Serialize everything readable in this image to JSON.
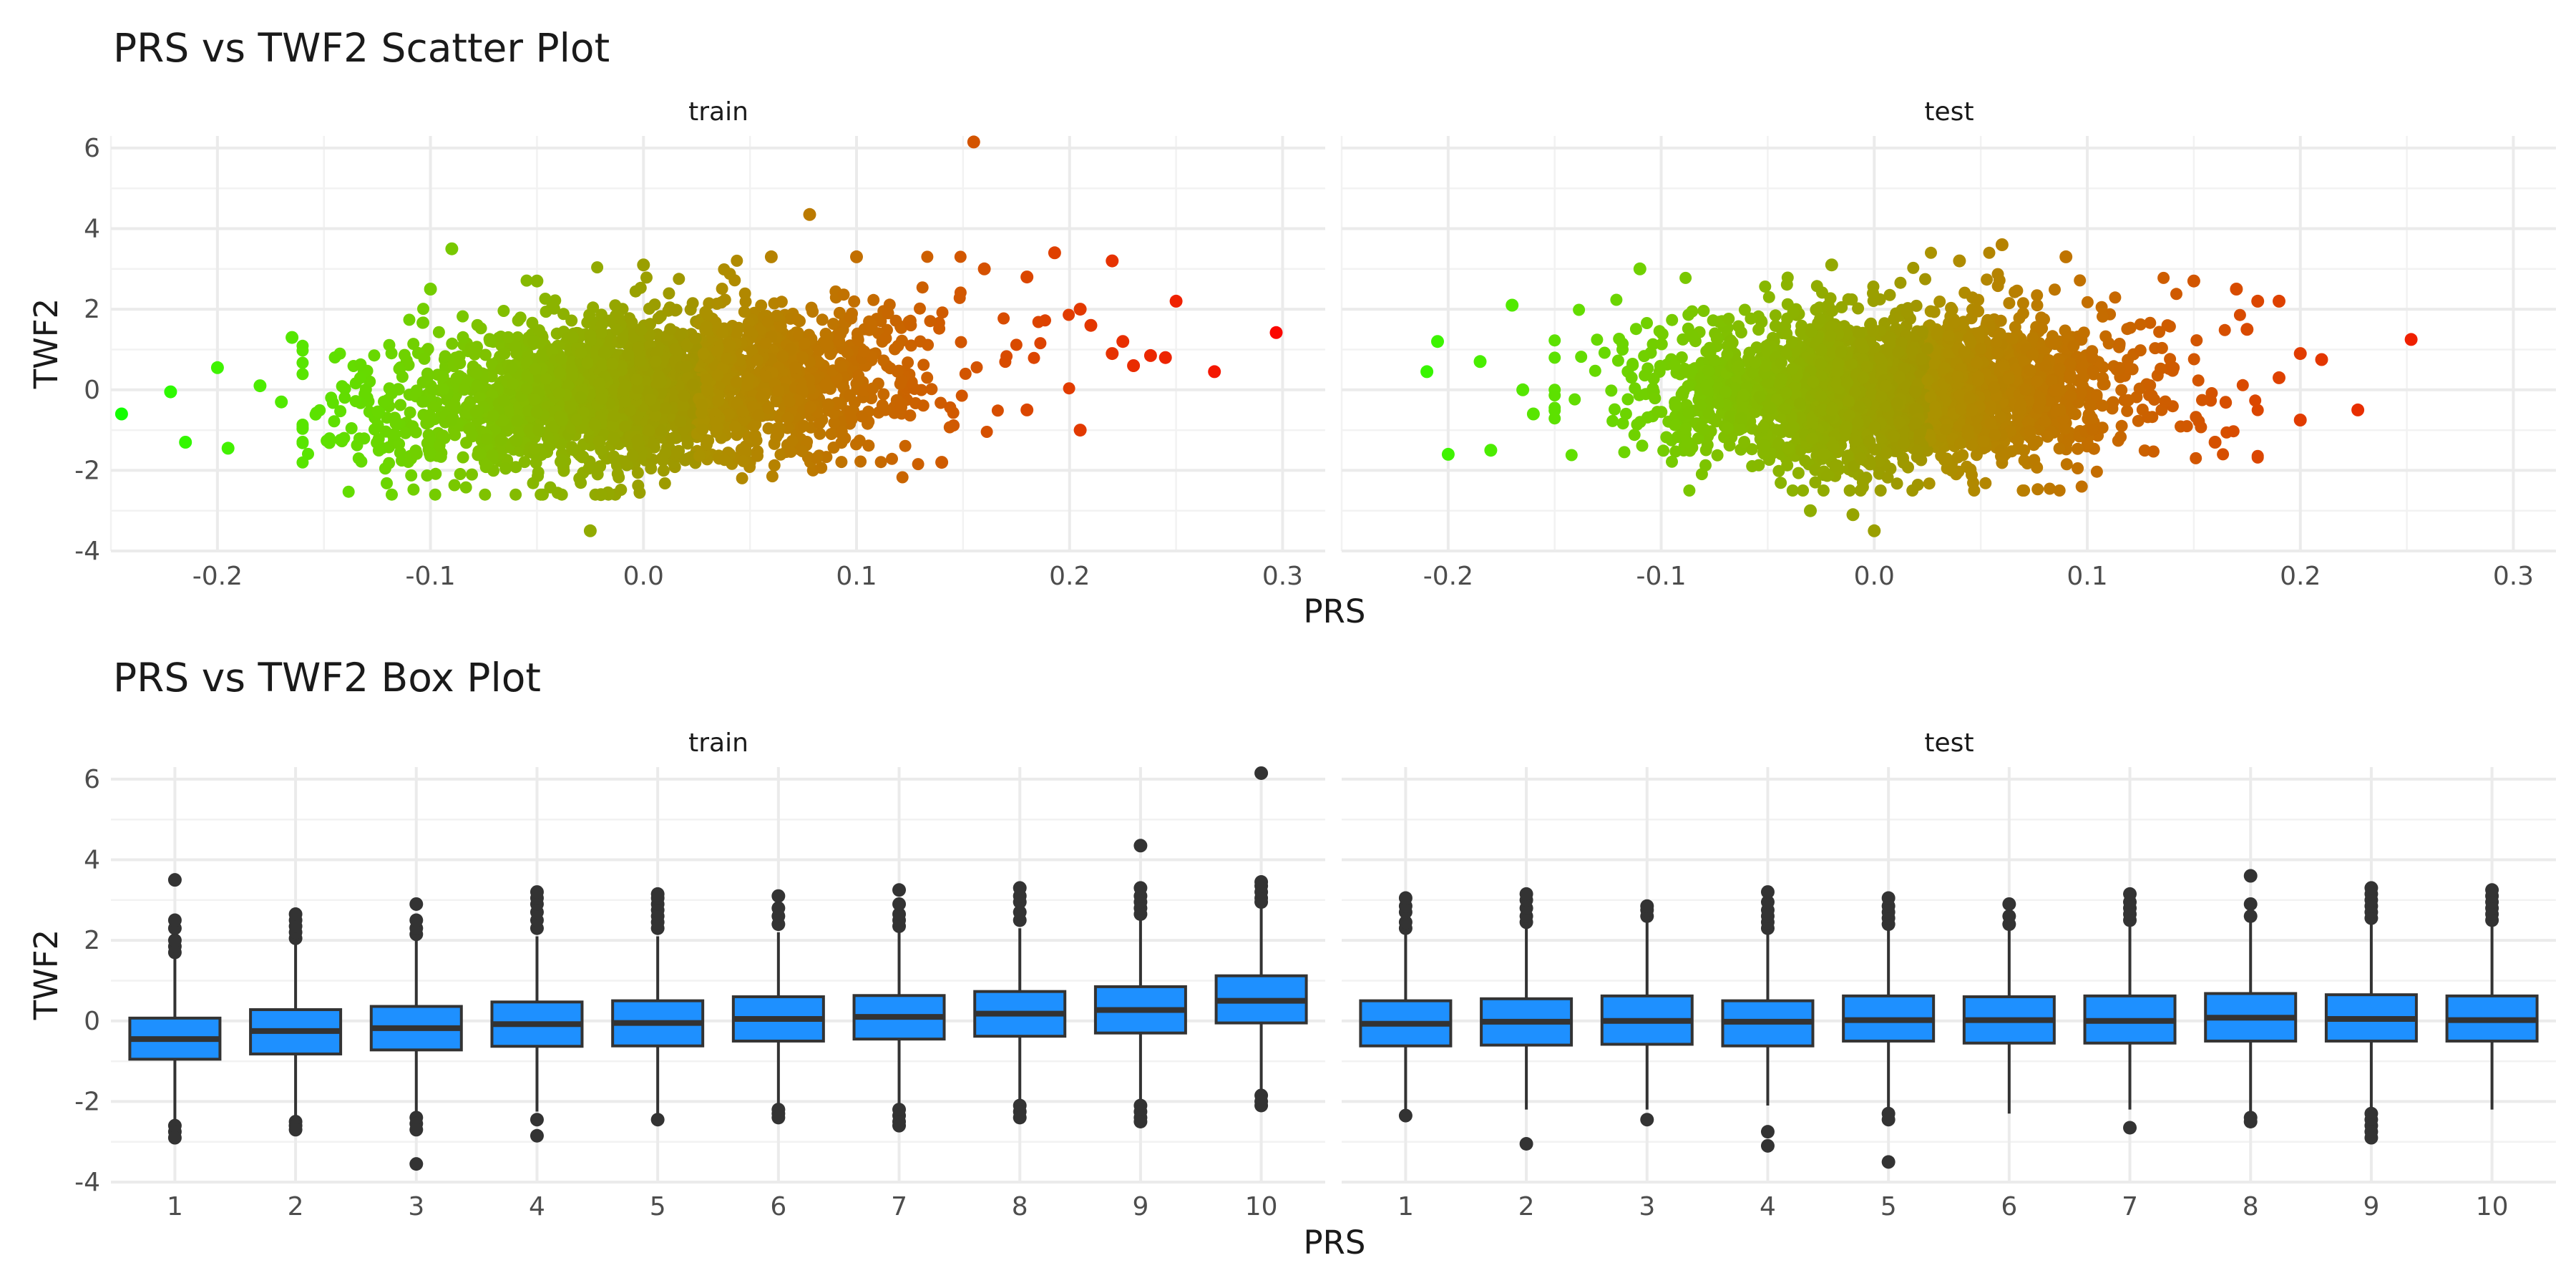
{
  "chart_data": [
    {
      "type": "scatter",
      "title": "PRS vs TWF2 Scatter Plot",
      "xlabel": "PRS",
      "ylabel": "TWF2",
      "facets": [
        "train",
        "test"
      ],
      "xlim": [
        -0.25,
        0.32
      ],
      "ylim": [
        -4,
        6.3
      ],
      "x_ticks": [
        "-0.2",
        "-0.1",
        "0.0",
        "0.1",
        "0.2",
        "0.3"
      ],
      "y_ticks": [
        "-4",
        "-2",
        "0",
        "2",
        "4",
        "6"
      ],
      "x_tick_values": [
        -0.2,
        -0.1,
        0.0,
        0.1,
        0.2,
        0.3
      ],
      "y_tick_values": [
        -4,
        -2,
        0,
        2,
        4,
        6
      ],
      "color_scale": {
        "low": "#00ff00",
        "high": "#ff0000",
        "variable": "PRS"
      },
      "grid": true,
      "cloud": {
        "train": {
          "x_mean": 0.0,
          "x_sd": 0.06,
          "y_intercept": 0.0,
          "y_slope": 4.5,
          "y_sd": 0.95,
          "x_range": [
            -0.16,
            0.2
          ],
          "y_range": [
            -2.6,
            3.3
          ]
        },
        "test": {
          "x_mean": 0.01,
          "x_sd": 0.055,
          "y_intercept": 0.0,
          "y_slope": 0.6,
          "y_sd": 0.95,
          "x_range": [
            -0.15,
            0.18
          ],
          "y_range": [
            -2.5,
            3.4
          ]
        }
      },
      "points": {
        "train": [
          [
            -0.245,
            -0.6
          ],
          [
            -0.222,
            -0.05
          ],
          [
            -0.215,
            -1.3
          ],
          [
            -0.2,
            0.55
          ],
          [
            -0.195,
            -1.45
          ],
          [
            -0.18,
            0.1
          ],
          [
            -0.17,
            -0.3
          ],
          [
            -0.165,
            1.3
          ],
          [
            -0.09,
            3.5
          ],
          [
            -0.1,
            2.5
          ],
          [
            -0.05,
            2.7
          ],
          [
            -0.025,
            -3.5
          ],
          [
            -0.02,
            -2.6
          ],
          [
            0.0,
            3.1
          ],
          [
            0.06,
            3.3
          ],
          [
            0.078,
            4.35
          ],
          [
            0.1,
            3.3
          ],
          [
            0.155,
            6.15
          ],
          [
            0.16,
            3.0
          ],
          [
            0.18,
            2.8
          ],
          [
            0.193,
            3.4
          ],
          [
            0.22,
            3.2
          ],
          [
            0.205,
            2.0
          ],
          [
            0.21,
            1.6
          ],
          [
            0.225,
            1.2
          ],
          [
            0.22,
            0.9
          ],
          [
            0.238,
            0.85
          ],
          [
            0.245,
            0.8
          ],
          [
            0.25,
            2.2
          ],
          [
            0.268,
            0.45
          ],
          [
            0.297,
            1.42
          ],
          [
            0.205,
            -1.0
          ],
          [
            0.14,
            -1.8
          ],
          [
            0.18,
            -0.5
          ],
          [
            0.23,
            0.6
          ]
        ],
        "test": [
          [
            -0.21,
            0.45
          ],
          [
            -0.205,
            1.2
          ],
          [
            -0.2,
            -1.6
          ],
          [
            -0.185,
            0.7
          ],
          [
            -0.18,
            -1.5
          ],
          [
            -0.17,
            2.1
          ],
          [
            -0.165,
            0.0
          ],
          [
            -0.16,
            -0.6
          ],
          [
            -0.11,
            3.0
          ],
          [
            -0.03,
            -3.0
          ],
          [
            -0.02,
            3.1
          ],
          [
            0.0,
            -3.5
          ],
          [
            -0.01,
            -3.1
          ],
          [
            0.04,
            3.2
          ],
          [
            0.06,
            3.6
          ],
          [
            0.09,
            3.3
          ],
          [
            0.15,
            2.7
          ],
          [
            0.17,
            2.5
          ],
          [
            0.18,
            2.2
          ],
          [
            0.19,
            2.2
          ],
          [
            0.2,
            0.9
          ],
          [
            0.21,
            0.75
          ],
          [
            0.2,
            -0.75
          ],
          [
            0.227,
            -0.5
          ],
          [
            0.252,
            1.25
          ],
          [
            0.19,
            0.3
          ],
          [
            0.16,
            -1.3
          ],
          [
            0.175,
            1.5
          ]
        ]
      }
    },
    {
      "type": "box",
      "title": "PRS vs TWF2 Box Plot",
      "xlabel": "PRS",
      "ylabel": "TWF2",
      "facets": [
        "train",
        "test"
      ],
      "categories": [
        "1",
        "2",
        "3",
        "4",
        "5",
        "6",
        "7",
        "8",
        "9",
        "10"
      ],
      "ylim": [
        -4,
        6.3
      ],
      "y_ticks": [
        "-4",
        "-2",
        "0",
        "2",
        "4",
        "6"
      ],
      "y_tick_values": [
        -4,
        -2,
        0,
        2,
        4,
        6
      ],
      "fill_color": "#1e90ff",
      "grid": true,
      "boxes": {
        "train": [
          {
            "q1": -0.95,
            "median": -0.45,
            "q3": 0.07,
            "whisker_low": -2.5,
            "whisker_high": 1.6,
            "outliers": [
              1.7,
              1.85,
              2.0,
              2.3,
              2.5,
              3.5,
              -2.6,
              -2.75,
              -2.9
            ]
          },
          {
            "q1": -0.82,
            "median": -0.25,
            "q3": 0.28,
            "whisker_low": -2.4,
            "whisker_high": 1.9,
            "outliers": [
              2.05,
              2.2,
              2.35,
              2.5,
              2.65,
              -2.5,
              -2.6,
              -2.7
            ]
          },
          {
            "q1": -0.72,
            "median": -0.18,
            "q3": 0.36,
            "whisker_low": -2.3,
            "whisker_high": 2.0,
            "outliers": [
              2.15,
              2.3,
              2.5,
              2.9,
              -2.4,
              -2.55,
              -2.7,
              -3.55
            ]
          },
          {
            "q1": -0.63,
            "median": -0.08,
            "q3": 0.47,
            "whisker_low": -2.25,
            "whisker_high": 2.1,
            "outliers": [
              2.3,
              2.5,
              2.7,
              2.9,
              3.05,
              3.2,
              -2.45,
              -2.85
            ]
          },
          {
            "q1": -0.62,
            "median": -0.05,
            "q3": 0.5,
            "whisker_low": -2.4,
            "whisker_high": 2.1,
            "outliers": [
              2.3,
              2.45,
              2.6,
              2.75,
              2.9,
              3.05,
              3.15,
              -2.45
            ]
          },
          {
            "q1": -0.5,
            "median": 0.05,
            "q3": 0.6,
            "whisker_low": -2.1,
            "whisker_high": 2.2,
            "outliers": [
              2.4,
              2.6,
              2.8,
              3.1,
              -2.2,
              -2.3,
              -2.4
            ]
          },
          {
            "q1": -0.45,
            "median": 0.1,
            "q3": 0.63,
            "whisker_low": -2.1,
            "whisker_high": 2.2,
            "outliers": [
              2.35,
              2.5,
              2.65,
              2.9,
              3.25,
              -2.2,
              -2.35,
              -2.5,
              -2.6
            ]
          },
          {
            "q1": -0.38,
            "median": 0.18,
            "q3": 0.73,
            "whisker_low": -2.0,
            "whisker_high": 2.3,
            "outliers": [
              2.5,
              2.7,
              2.95,
              3.1,
              3.3,
              -2.1,
              -2.25,
              -2.4
            ]
          },
          {
            "q1": -0.3,
            "median": 0.27,
            "q3": 0.85,
            "whisker_low": -2.0,
            "whisker_high": 2.5,
            "outliers": [
              2.65,
              2.8,
              2.95,
              3.1,
              3.3,
              4.35,
              -2.1,
              -2.25,
              -2.4,
              -2.5
            ]
          },
          {
            "q1": -0.05,
            "median": 0.5,
            "q3": 1.12,
            "whisker_low": -1.8,
            "whisker_high": 2.8,
            "outliers": [
              2.95,
              3.05,
              3.2,
              3.35,
              3.45,
              6.15,
              -1.85,
              -2.0,
              -2.1
            ]
          }
        ],
        "test": [
          {
            "q1": -0.62,
            "median": -0.07,
            "q3": 0.5,
            "whisker_low": -2.3,
            "whisker_high": 2.2,
            "outliers": [
              2.3,
              2.45,
              2.7,
              2.85,
              3.05,
              -2.35
            ]
          },
          {
            "q1": -0.6,
            "median": -0.02,
            "q3": 0.55,
            "whisker_low": -2.2,
            "whisker_high": 2.3,
            "outliers": [
              2.45,
              2.6,
              2.8,
              3.0,
              3.15,
              -3.05
            ]
          },
          {
            "q1": -0.58,
            "median": 0.0,
            "q3": 0.62,
            "whisker_low": -2.2,
            "whisker_high": 2.5,
            "outliers": [
              2.6,
              2.75,
              2.85,
              -2.45
            ]
          },
          {
            "q1": -0.62,
            "median": -0.02,
            "q3": 0.5,
            "whisker_low": -2.1,
            "whisker_high": 2.2,
            "outliers": [
              2.3,
              2.45,
              2.6,
              2.75,
              2.95,
              3.2,
              -2.75,
              -3.1
            ]
          },
          {
            "q1": -0.5,
            "median": 0.02,
            "q3": 0.62,
            "whisker_low": -2.2,
            "whisker_high": 2.3,
            "outliers": [
              2.4,
              2.55,
              2.7,
              2.85,
              3.05,
              -2.3,
              -2.45,
              -3.5
            ]
          },
          {
            "q1": -0.55,
            "median": 0.02,
            "q3": 0.6,
            "whisker_low": -2.3,
            "whisker_high": 2.3,
            "outliers": [
              2.4,
              2.6,
              2.9
            ]
          },
          {
            "q1": -0.55,
            "median": 0.0,
            "q3": 0.62,
            "whisker_low": -2.2,
            "whisker_high": 2.4,
            "outliers": [
              2.5,
              2.65,
              2.8,
              2.95,
              3.15,
              -2.65
            ]
          },
          {
            "q1": -0.5,
            "median": 0.08,
            "q3": 0.68,
            "whisker_low": -2.3,
            "whisker_high": 2.5,
            "outliers": [
              2.6,
              2.9,
              3.6,
              -2.4,
              -2.5
            ]
          },
          {
            "q1": -0.5,
            "median": 0.05,
            "q3": 0.65,
            "whisker_low": -2.2,
            "whisker_high": 2.4,
            "outliers": [
              2.55,
              2.7,
              2.85,
              3.0,
              3.15,
              3.3,
              -2.3,
              -2.45,
              -2.6,
              -2.75,
              -2.9
            ]
          },
          {
            "q1": -0.5,
            "median": 0.02,
            "q3": 0.62,
            "whisker_low": -2.2,
            "whisker_high": 2.4,
            "outliers": [
              2.5,
              2.65,
              2.8,
              2.95,
              3.1,
              3.25
            ]
          }
        ]
      }
    }
  ]
}
